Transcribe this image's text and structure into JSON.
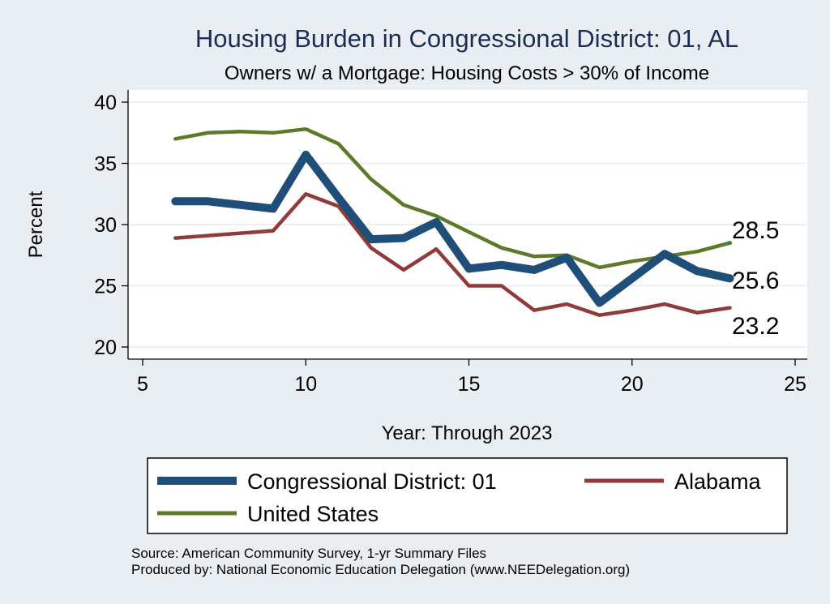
{
  "chart_data": {
    "type": "line",
    "title": "Housing Burden in Congressional District:  01, AL",
    "subtitle": "Owners w/ a Mortgage: Housing Costs > 30% of Income",
    "xlabel": "Year: Through 2023",
    "ylabel": "Percent",
    "xlim": [
      5,
      25
    ],
    "ylim": [
      20,
      40
    ],
    "x_ticks": [
      5,
      10,
      15,
      20,
      25
    ],
    "y_ticks": [
      20,
      25,
      30,
      35,
      40
    ],
    "grid": true,
    "legend_position": "bottom",
    "series": [
      {
        "name": "Congressional District:  01",
        "color": "#1f4e79",
        "x": [
          6,
          7,
          8,
          9,
          10,
          11,
          12,
          13,
          14,
          15,
          16,
          17,
          18,
          19,
          20,
          21,
          22,
          23
        ],
        "y": [
          31.9,
          31.9,
          31.6,
          31.3,
          35.7,
          32.2,
          28.8,
          28.9,
          30.2,
          26.4,
          26.7,
          26.3,
          27.3,
          23.6,
          25.6,
          27.6,
          26.2,
          25.6
        ],
        "end_label": "25.6"
      },
      {
        "name": "Alabama",
        "color": "#913a3a",
        "x": [
          6,
          7,
          8,
          9,
          10,
          11,
          12,
          13,
          14,
          15,
          16,
          17,
          18,
          19,
          20,
          21,
          22,
          23
        ],
        "y": [
          28.9,
          29.1,
          29.3,
          29.5,
          32.5,
          31.5,
          28.1,
          26.3,
          28.0,
          25.0,
          25.0,
          23.0,
          23.5,
          22.6,
          23.0,
          23.5,
          22.8,
          23.2
        ],
        "end_label": "23.2"
      },
      {
        "name": "United States",
        "color": "#5b7a2a",
        "x": [
          6,
          7,
          8,
          9,
          10,
          11,
          12,
          13,
          14,
          15,
          16,
          17,
          18,
          19,
          20,
          21,
          22,
          23
        ],
        "y": [
          37.0,
          37.5,
          37.6,
          37.5,
          37.8,
          36.6,
          33.7,
          31.6,
          30.7,
          29.4,
          28.1,
          27.4,
          27.5,
          26.5,
          27.0,
          27.4,
          27.8,
          28.5
        ],
        "end_label": "28.5"
      }
    ]
  },
  "source_lines": [
    "Source: American Community Survey, 1-yr Summary Files",
    "Produced by: National Economic Education Delegation (www.NEEDelegation.org)"
  ]
}
